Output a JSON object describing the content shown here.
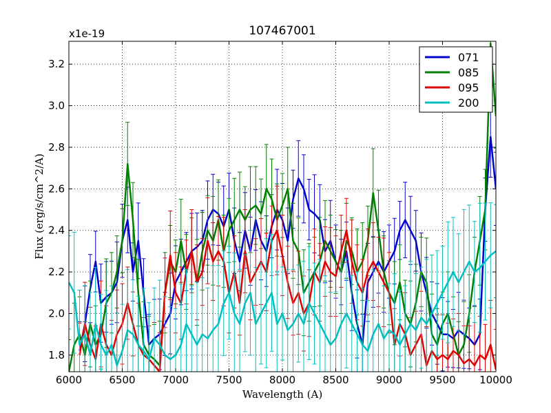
{
  "chart_data": {
    "type": "line",
    "title": "107467001",
    "xlabel": "Wavelength (A)",
    "ylabel": "Flux (erg/s/cm^2/A)",
    "scale_label": "x1e-19",
    "xlim": [
      6000,
      10000
    ],
    "ylim": [
      1.72,
      3.31
    ],
    "grid": true,
    "legend_position": "top-right",
    "x_ticks": [
      6000,
      6500,
      7000,
      7500,
      8000,
      8500,
      9000,
      9500,
      10000
    ],
    "y_ticks": [
      1.8,
      2.0,
      2.2,
      2.4,
      2.6,
      2.8,
      3.0,
      3.2
    ],
    "x_tick_labels": [
      "6000",
      "6500",
      "7000",
      "7500",
      "8000",
      "8500",
      "9000",
      "9500",
      "10000"
    ],
    "y_tick_labels": [
      "1.8",
      "2.0",
      "2.2",
      "2.4",
      "2.6",
      "2.8",
      "3.0",
      "3.2"
    ],
    "series": [
      {
        "name": "071",
        "color": "#0000cc",
        "error": 0.2,
        "x": [
          6100,
          6150,
          6200,
          6250,
          6300,
          6350,
          6400,
          6450,
          6500,
          6550,
          6600,
          6650,
          6700,
          6750,
          6800,
          6850,
          6900,
          6950,
          7000,
          7050,
          7100,
          7150,
          7200,
          7250,
          7300,
          7350,
          7400,
          7450,
          7500,
          7550,
          7600,
          7650,
          7700,
          7750,
          7800,
          7850,
          7900,
          7950,
          8000,
          8050,
          8100,
          8150,
          8200,
          8250,
          8300,
          8350,
          8400,
          8450,
          8500,
          8550,
          8600,
          8650,
          8700,
          8750,
          8800,
          8850,
          8900,
          8950,
          9000,
          9050,
          9100,
          9150,
          9200,
          9250,
          9300,
          9350,
          9400,
          9450,
          9500,
          9550,
          9600,
          9650,
          9700,
          9750,
          9800,
          9850,
          9900,
          9950,
          10000
        ],
        "values": [
          1.82,
          1.95,
          2.12,
          2.25,
          2.05,
          2.08,
          2.1,
          2.15,
          2.35,
          2.45,
          2.2,
          2.35,
          2.1,
          1.85,
          1.88,
          1.9,
          1.95,
          2.0,
          2.15,
          2.2,
          2.25,
          2.3,
          2.32,
          2.35,
          2.45,
          2.5,
          2.48,
          2.42,
          2.5,
          2.35,
          2.25,
          2.4,
          2.3,
          2.45,
          2.35,
          2.3,
          2.42,
          2.5,
          2.45,
          2.35,
          2.55,
          2.65,
          2.6,
          2.5,
          2.48,
          2.45,
          2.3,
          2.35,
          2.25,
          2.2,
          2.3,
          2.1,
          1.95,
          1.85,
          2.15,
          2.2,
          2.25,
          2.2,
          2.25,
          2.3,
          2.4,
          2.45,
          2.4,
          2.35,
          2.2,
          2.1,
          2.0,
          1.95,
          1.9,
          1.9,
          1.88,
          1.92,
          1.9,
          1.88,
          1.85,
          1.9,
          2.5,
          2.85,
          2.6
        ]
      },
      {
        "name": "085",
        "color": "#007f00",
        "error": 0.22,
        "x": [
          6000,
          6050,
          6100,
          6150,
          6200,
          6250,
          6300,
          6350,
          6400,
          6450,
          6500,
          6550,
          6600,
          6650,
          6700,
          6750,
          6800,
          6850,
          6900,
          6950,
          7000,
          7050,
          7100,
          7150,
          7200,
          7250,
          7300,
          7350,
          7400,
          7450,
          7500,
          7550,
          7600,
          7650,
          7700,
          7750,
          7800,
          7850,
          7900,
          7950,
          8000,
          8050,
          8100,
          8150,
          8200,
          8250,
          8300,
          8350,
          8400,
          8450,
          8500,
          8550,
          8600,
          8650,
          8700,
          8750,
          8800,
          8850,
          8900,
          8950,
          9000,
          9050,
          9100,
          9150,
          9200,
          9250,
          9300,
          9350,
          9400,
          9450,
          9500,
          9550,
          9600,
          9650,
          9700,
          9750,
          9800,
          9850,
          9900,
          9950,
          10000
        ],
        "values": [
          1.72,
          1.85,
          1.9,
          1.8,
          1.95,
          1.85,
          1.9,
          2.05,
          2.1,
          2.2,
          2.35,
          2.72,
          2.45,
          2.1,
          1.85,
          1.8,
          1.78,
          1.75,
          2.1,
          2.25,
          2.2,
          2.35,
          2.2,
          2.3,
          2.15,
          2.3,
          2.4,
          2.35,
          2.45,
          2.3,
          2.4,
          2.45,
          2.5,
          2.45,
          2.5,
          2.52,
          2.48,
          2.6,
          2.55,
          2.45,
          2.52,
          2.6,
          2.35,
          2.3,
          2.1,
          2.15,
          2.2,
          2.25,
          2.35,
          2.3,
          2.25,
          2.2,
          2.35,
          2.3,
          2.2,
          2.25,
          2.35,
          2.58,
          2.4,
          2.2,
          2.1,
          2.05,
          2.15,
          2.0,
          1.95,
          2.05,
          2.2,
          2.15,
          1.9,
          1.85,
          1.95,
          2.0,
          1.9,
          1.8,
          1.85,
          2.0,
          2.2,
          2.35,
          2.5,
          3.3,
          2.95
        ]
      },
      {
        "name": "095",
        "color": "#e00000",
        "error": 0.22,
        "x": [
          6100,
          6150,
          6200,
          6250,
          6300,
          6350,
          6400,
          6450,
          6500,
          6550,
          6600,
          6650,
          6700,
          6750,
          6800,
          6850,
          6900,
          6950,
          7000,
          7050,
          7100,
          7150,
          7200,
          7250,
          7300,
          7350,
          7400,
          7450,
          7500,
          7550,
          7600,
          7650,
          7700,
          7750,
          7800,
          7850,
          7900,
          7950,
          8000,
          8050,
          8100,
          8150,
          8200,
          8250,
          8300,
          8350,
          8400,
          8450,
          8500,
          8550,
          8600,
          8650,
          8700,
          8750,
          8800,
          8850,
          8900,
          8950,
          9000,
          9050,
          9100,
          9150,
          9200,
          9250,
          9300,
          9350,
          9400,
          9450,
          9500,
          9550,
          9600,
          9650,
          9700,
          9750,
          9800,
          9850,
          9900,
          9950,
          10000
        ],
        "values": [
          1.8,
          1.95,
          1.85,
          1.78,
          1.95,
          1.85,
          1.8,
          1.9,
          1.95,
          2.05,
          1.95,
          1.85,
          1.8,
          1.78,
          1.75,
          1.72,
          2.1,
          2.28,
          2.1,
          2.05,
          2.2,
          2.3,
          2.15,
          2.2,
          2.35,
          2.25,
          2.3,
          2.25,
          2.1,
          2.2,
          2.05,
          2.3,
          2.15,
          2.2,
          2.25,
          2.2,
          2.35,
          2.4,
          2.28,
          2.15,
          2.05,
          2.1,
          2.0,
          2.05,
          2.2,
          2.15,
          2.25,
          2.2,
          2.18,
          2.3,
          2.4,
          2.25,
          2.15,
          2.1,
          2.2,
          2.25,
          2.2,
          2.15,
          2.1,
          1.85,
          1.95,
          1.9,
          1.8,
          1.85,
          1.9,
          1.75,
          1.82,
          1.78,
          1.8,
          1.78,
          1.82,
          1.8,
          1.76,
          1.78,
          1.75,
          1.8,
          1.78,
          1.85,
          1.73
        ]
      },
      {
        "name": "200",
        "color": "#00bfbf",
        "error": 0.32,
        "x": [
          6000,
          6050,
          6100,
          6150,
          6200,
          6250,
          6300,
          6350,
          6400,
          6450,
          6500,
          6550,
          6600,
          6650,
          6700,
          6750,
          6800,
          6850,
          6900,
          6950,
          7000,
          7050,
          7100,
          7150,
          7200,
          7250,
          7300,
          7350,
          7400,
          7450,
          7500,
          7550,
          7600,
          7650,
          7700,
          7750,
          7800,
          7850,
          7900,
          7950,
          8000,
          8050,
          8100,
          8150,
          8200,
          8250,
          8300,
          8350,
          8400,
          8450,
          8500,
          8550,
          8600,
          8650,
          8700,
          8750,
          8800,
          8850,
          8900,
          8950,
          9000,
          9050,
          9100,
          9150,
          9200,
          9250,
          9300,
          9350,
          9400,
          9450,
          9500,
          9550,
          9600,
          9650,
          9700,
          9750,
          9800,
          9850,
          9900,
          9950,
          10000
        ],
        "values": [
          2.15,
          2.1,
          1.85,
          1.9,
          1.8,
          1.95,
          1.85,
          1.8,
          1.85,
          1.75,
          1.82,
          1.92,
          1.9,
          1.85,
          1.82,
          1.78,
          1.88,
          1.85,
          1.8,
          1.78,
          1.8,
          1.85,
          1.95,
          1.9,
          1.85,
          1.9,
          1.88,
          1.92,
          1.95,
          2.05,
          2.1,
          2.0,
          1.95,
          2.05,
          2.1,
          1.95,
          2.0,
          2.05,
          2.1,
          1.95,
          2.0,
          1.92,
          1.95,
          2.0,
          1.95,
          2.05,
          2.0,
          1.95,
          1.9,
          1.85,
          1.88,
          1.95,
          2.0,
          1.95,
          1.9,
          1.85,
          1.82,
          1.9,
          1.95,
          1.88,
          1.92,
          1.9,
          1.85,
          1.9,
          1.95,
          1.92,
          1.98,
          1.95,
          2.0,
          2.05,
          2.1,
          2.15,
          2.2,
          2.15,
          2.2,
          2.25,
          2.2,
          2.22,
          2.25,
          2.28,
          2.3
        ]
      }
    ]
  }
}
